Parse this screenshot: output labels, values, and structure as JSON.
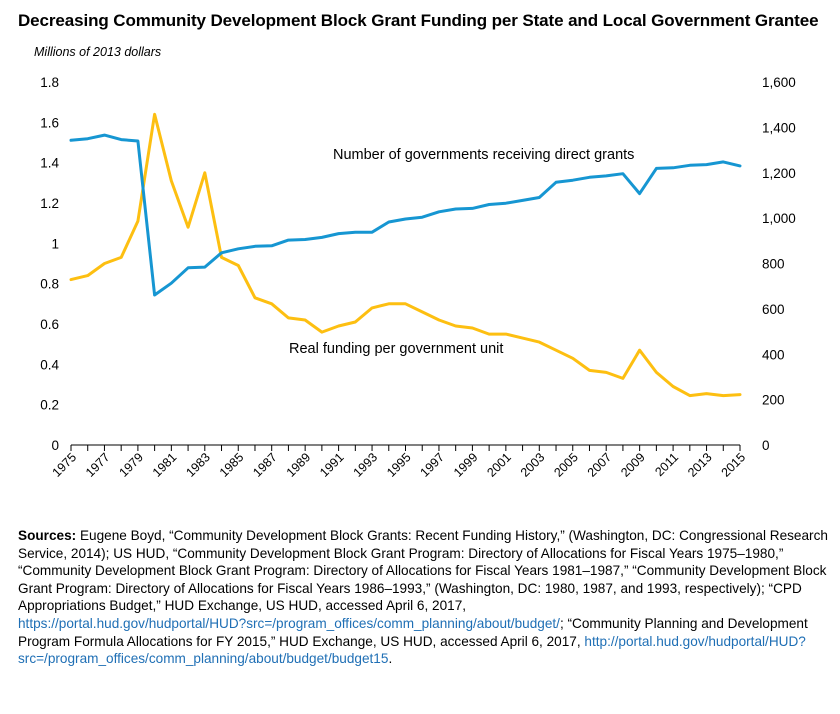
{
  "chart_data": {
    "type": "line",
    "title": "Decreasing Community Development Block Grant Funding per State and Local Government Grantee",
    "left_axis_label": "Millions of 2013 dollars",
    "left_ylim": [
      0,
      1.8
    ],
    "left_ticks": [
      "0",
      "0.2",
      "0.4",
      "0.6",
      "0.8",
      "1",
      "1.2",
      "1.4",
      "1.6",
      "1.8"
    ],
    "right_ylim": [
      0,
      1600
    ],
    "right_ticks": [
      "0",
      "200",
      "400",
      "600",
      "800",
      "1,000",
      "1,200",
      "1,400",
      "1,600"
    ],
    "x": [
      1975,
      1976,
      1977,
      1978,
      1979,
      1980,
      1981,
      1982,
      1983,
      1984,
      1985,
      1986,
      1987,
      1988,
      1989,
      1990,
      1991,
      1992,
      1993,
      1994,
      1995,
      1996,
      1997,
      1998,
      1999,
      2000,
      2001,
      2002,
      2003,
      2004,
      2005,
      2006,
      2007,
      2008,
      2009,
      2010,
      2011,
      2012,
      2013,
      2014,
      2015
    ],
    "x_tick_labels": [
      "1975",
      "1977",
      "1979",
      "1981",
      "1983",
      "1985",
      "1987",
      "1989",
      "1991",
      "1993",
      "1995",
      "1997",
      "1999",
      "2001",
      "2003",
      "2005",
      "2007",
      "2009",
      "2011",
      "2013",
      "2015"
    ],
    "series": [
      {
        "name": "Real funding per government unit",
        "axis": "left",
        "color": "#fdbf11",
        "values": [
          0.82,
          0.84,
          0.9,
          0.93,
          1.11,
          1.64,
          1.31,
          1.08,
          1.35,
          0.93,
          0.89,
          0.73,
          0.7,
          0.63,
          0.62,
          0.56,
          0.59,
          0.61,
          0.68,
          0.7,
          0.7,
          0.66,
          0.62,
          0.59,
          0.58,
          0.55,
          0.55,
          0.53,
          0.51,
          0.47,
          0.43,
          0.37,
          0.36,
          0.33,
          0.47,
          0.36,
          0.29,
          0.245,
          0.255,
          0.245,
          0.25
        ]
      },
      {
        "name": "Number of governments receiving direct grants",
        "axis": "right",
        "color": "#1696d2",
        "values": [
          1343,
          1350,
          1366,
          1346,
          1340,
          661,
          713,
          781,
          784,
          847,
          865,
          876,
          878,
          903,
          906,
          915,
          932,
          938,
          938,
          983,
          996,
          1004,
          1028,
          1040,
          1043,
          1060,
          1066,
          1078,
          1091,
          1158,
          1167,
          1180,
          1186,
          1196,
          1108,
          1219,
          1222,
          1233,
          1236,
          1248,
          1230
        ]
      }
    ],
    "annotations": {
      "blue_label": "Number of governments receiving direct grants",
      "yellow_label": "Real funding per government unit"
    }
  },
  "sources": {
    "label": "Sources:",
    "text_1": "Eugene Boyd, “Community Development Block Grants: Recent Funding History,” (Washington, DC: Congressional Research Service, 2014); US HUD, “Community Development Block Grant Program: Directory of Allocations for Fiscal Years 1975–1980,” “Community Development Block Grant Program: Directory of Allocations for Fiscal Years 1981–1987,” “Community Development Block Grant Program: Directory of Allocations for Fiscal Years 1986–1993,” (Washington, DC: 1980, 1987, and 1993, respectively);  “CPD Appropriations Budget,” HUD Exchange, US HUD, accessed April 6, 2017,",
    "link_1": "https://portal.hud.gov/hudportal/HUD?src=/program_offices/comm_planning/about/budget/",
    "text_2": "; “Community Planning and Development Program Formula Allocations for FY 2015,” HUD Exchange, US HUD, accessed April 6, 2017,",
    "link_2": "http://portal.hud.gov/hudportal/HUD?src=/program_offices/comm_planning/about/budget/budget15",
    "text_3": "."
  }
}
